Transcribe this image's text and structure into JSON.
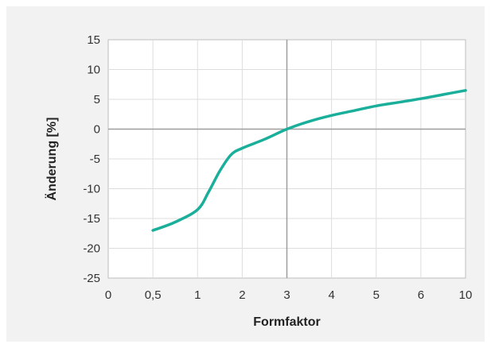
{
  "chart_data": {
    "type": "line",
    "xlabel": "Formfaktor",
    "ylabel": "Änderung [%]",
    "x_ticks": [
      "0",
      "0,5",
      "1",
      "2",
      "3",
      "4",
      "5",
      "6",
      "10"
    ],
    "y_ticks": [
      15,
      10,
      5,
      0,
      -5,
      -10,
      -15,
      -20,
      -25
    ],
    "ylim": [
      -25,
      15
    ],
    "grid": true,
    "x_scale": "categorical-ordinal (equally spaced tick positions)",
    "series": [
      {
        "color": "#1aaf9a",
        "points": [
          {
            "x": "0,5",
            "y": -17.0
          },
          {
            "x": "0,75",
            "y": -15.6
          },
          {
            "x": "1",
            "y": -13.5
          },
          {
            "x": "1,25",
            "y": -10.5
          },
          {
            "x": "1,5",
            "y": -7.0
          },
          {
            "x": "1,75",
            "y": -4.3
          },
          {
            "x": "2",
            "y": -3.2
          },
          {
            "x": "2,5",
            "y": -1.7
          },
          {
            "x": "3",
            "y": 0.0
          },
          {
            "x": "3,5",
            "y": 1.3
          },
          {
            "x": "4",
            "y": 2.3
          },
          {
            "x": "4,5",
            "y": 3.1
          },
          {
            "x": "5",
            "y": 3.9
          },
          {
            "x": "5,5",
            "y": 4.5
          },
          {
            "x": "6",
            "y": 5.1
          },
          {
            "x": "8",
            "y": 5.8
          },
          {
            "x": "10",
            "y": 6.5
          }
        ]
      }
    ]
  }
}
